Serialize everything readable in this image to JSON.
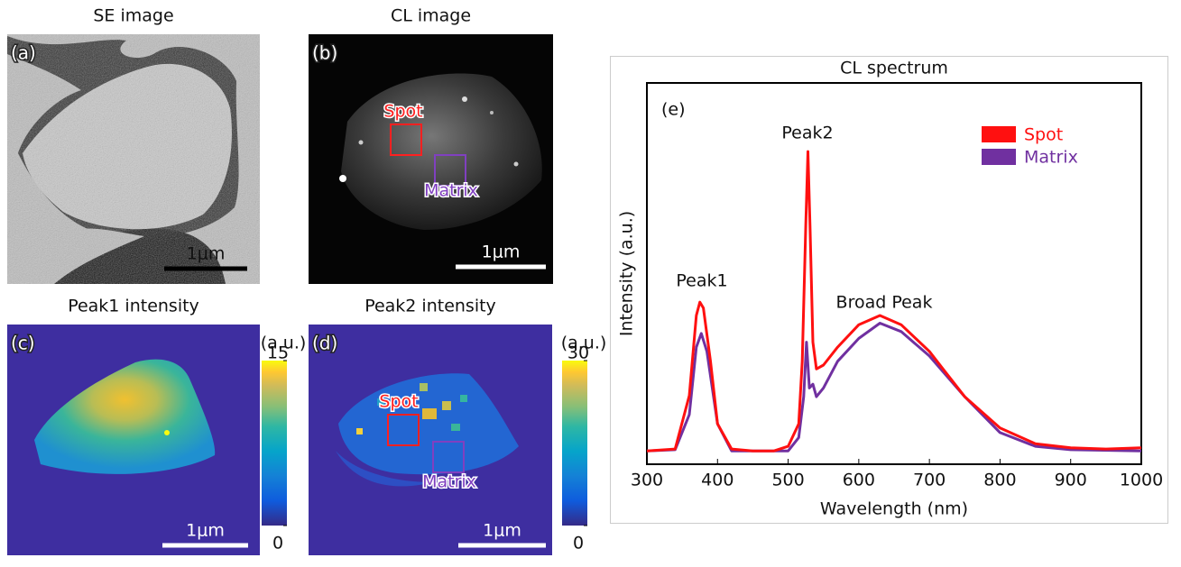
{
  "panels": [
    {
      "label": "(a)",
      "title": "SE image",
      "scale_bar": "1μm"
    },
    {
      "label": "(b)",
      "title": "CL image",
      "scale_bar": "1μm",
      "boxes": [
        "Spot",
        "Matrix"
      ]
    },
    {
      "label": "(c)",
      "title": "Peak1 intensity",
      "scale_bar": "1μm",
      "colorbar": {
        "label": "(a.u.)",
        "lim": [
          0,
          15
        ],
        "ticks": [
          0,
          15
        ]
      }
    },
    {
      "label": "(d)",
      "title": "Peak2 intensity",
      "scale_bar": "1μm",
      "boxes": [
        "Spot",
        "Matrix"
      ],
      "colorbar": {
        "label": "(a.u.)",
        "lim": [
          0,
          30
        ],
        "ticks": [
          0,
          30
        ]
      }
    }
  ],
  "chart_data": {
    "type": "line",
    "title": "CL spectrum",
    "panel_label": "(e)",
    "xlabel": "Wavelength (nm)",
    "ylabel": "Intensity (a.u.)",
    "xlim": [
      300,
      1000
    ],
    "xticks": [
      300,
      400,
      500,
      600,
      700,
      800,
      900,
      1000
    ],
    "ylim": [
      0,
      100
    ],
    "annotations": [
      "Peak1",
      "Peak2",
      "Broad Peak"
    ],
    "series": [
      {
        "name": "Spot",
        "color": "#ff1010",
        "x": [
          300,
          340,
          360,
          370,
          375,
          380,
          390,
          400,
          420,
          450,
          480,
          500,
          515,
          520,
          525,
          528,
          531,
          535,
          540,
          550,
          570,
          600,
          630,
          660,
          700,
          720,
          750,
          800,
          850,
          900,
          950,
          1000
        ],
        "values": [
          3.5,
          4,
          18,
          39,
          42.5,
          41,
          27,
          10.6,
          4,
          3.5,
          3.5,
          4.7,
          10.6,
          27,
          62.6,
          82,
          62.6,
          32,
          25,
          26,
          30.7,
          36.6,
          39,
          36.6,
          29.6,
          24.8,
          17.7,
          9.5,
          5.4,
          4.3,
          4,
          4.3
        ]
      },
      {
        "name": "Matrix",
        "color": "#7030a0",
        "x": [
          300,
          340,
          360,
          370,
          377,
          385,
          400,
          420,
          500,
          515,
          522,
          526,
          530,
          535,
          540,
          550,
          570,
          600,
          630,
          660,
          700,
          750,
          800,
          850,
          900,
          1000
        ],
        "values": [
          3.5,
          3.8,
          13,
          30.7,
          34.3,
          29.6,
          10.6,
          3.5,
          3.5,
          7,
          17.7,
          32,
          20,
          21,
          17.7,
          20,
          27,
          33,
          37,
          34.8,
          28.4,
          17.7,
          8.3,
          4.7,
          3.8,
          3.5
        ]
      }
    ]
  }
}
